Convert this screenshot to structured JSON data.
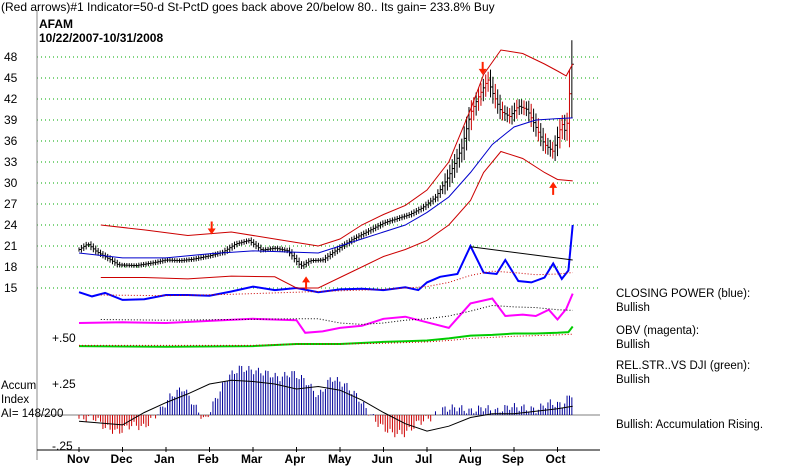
{
  "header": {
    "title": "(Red arrows)#1 Indicator=50-d St-PctD goes back above 20/below 80.. Its gain= 233.8% Buy",
    "ticker": "AFAM",
    "date_range": "10/22/2007-10/31/2008"
  },
  "side_labels": {
    "closing_power": {
      "title": "CLOSING POWER (blue):",
      "value": "Bullish"
    },
    "obv": {
      "title": "OBV (magenta):",
      "value": "Bullish"
    },
    "rel_str": {
      "title": "REL.STR..VS DJI (green):",
      "value": "Bullish"
    },
    "accum": {
      "text": "Bullish: Accumulation Rising."
    }
  },
  "accum_panel": {
    "title_line1": "Accum",
    "title_line2": "Index",
    "ai_text": "AI= 148/200"
  },
  "colors": {
    "price": "#000000",
    "band": "#cc0000",
    "ma": "#0000cc",
    "closing_power": "#0000ff",
    "obv": "#ff00ff",
    "rel_str": "#00cc00",
    "accum_pos": "#000099",
    "accum_neg": "#cc0000",
    "arrow": "#ff2200",
    "grid": "#00aa00"
  },
  "chart_data": {
    "type": "line",
    "x_tick_labels": [
      "Nov",
      "Dec",
      "Jan",
      "Feb",
      "Mar",
      "Apr",
      "May",
      "Jun",
      "Jul",
      "Aug",
      "Sep",
      "Oct"
    ],
    "price_y_ticks": [
      48,
      45,
      42,
      39,
      36,
      33,
      30,
      27,
      24,
      21,
      18,
      15
    ],
    "price_ylim": [
      13.5,
      49.5
    ],
    "accum_y_ticks": [
      {
        "value": 0.25,
        "label": "+.25"
      },
      {
        "value": -0.25,
        "label": "-.25"
      }
    ],
    "rel_str_level_label": "+.50",
    "series": [
      {
        "key": "price",
        "points": [
          [
            0,
            20.5
          ],
          [
            0.2,
            21.3
          ],
          [
            0.4,
            20.2
          ],
          [
            0.7,
            19.1
          ],
          [
            0.9,
            18.3
          ],
          [
            1.3,
            18.2
          ],
          [
            1.7,
            18.6
          ],
          [
            2.0,
            19.0
          ],
          [
            2.3,
            18.9
          ],
          [
            2.6,
            19.1
          ],
          [
            3.0,
            19.6
          ],
          [
            3.3,
            20.1
          ],
          [
            3.6,
            21.3
          ],
          [
            3.9,
            21.8
          ],
          [
            4.2,
            20.4
          ],
          [
            4.5,
            20.7
          ],
          [
            4.8,
            20.3
          ],
          [
            5.1,
            18.1
          ],
          [
            5.3,
            18.9
          ],
          [
            5.6,
            19.0
          ],
          [
            6.0,
            20.8
          ],
          [
            6.3,
            22.0
          ],
          [
            6.7,
            23.3
          ],
          [
            7.0,
            24.3
          ],
          [
            7.3,
            24.9
          ],
          [
            7.6,
            25.5
          ],
          [
            7.9,
            26.5
          ],
          [
            8.2,
            28.0
          ],
          [
            8.5,
            31.0
          ],
          [
            8.8,
            35.0
          ],
          [
            9.0,
            40.0
          ],
          [
            9.2,
            42.5
          ],
          [
            9.4,
            44.8
          ],
          [
            9.5,
            43.0
          ],
          [
            9.7,
            40.2
          ],
          [
            9.9,
            39.5
          ],
          [
            10.1,
            41.0
          ],
          [
            10.3,
            40.5
          ],
          [
            10.5,
            38.0
          ],
          [
            10.7,
            35.5
          ],
          [
            10.9,
            34.5
          ],
          [
            11.1,
            38.5
          ],
          [
            11.2,
            37.0
          ],
          [
            11.35,
            48.5
          ]
        ]
      },
      {
        "key": "ma",
        "points": [
          [
            0,
            20.0
          ],
          [
            1,
            19.3
          ],
          [
            2,
            19.3
          ],
          [
            3,
            19.9
          ],
          [
            4,
            20.3
          ],
          [
            5,
            20.1
          ],
          [
            5.5,
            20.0
          ],
          [
            6,
            21.0
          ],
          [
            7,
            23.0
          ],
          [
            7.5,
            24.0
          ],
          [
            8,
            25.8
          ],
          [
            8.5,
            28.0
          ],
          [
            9,
            31.5
          ],
          [
            9.5,
            35.5
          ],
          [
            10,
            38.0
          ],
          [
            10.5,
            39.0
          ],
          [
            11,
            39.2
          ],
          [
            11.35,
            39.3
          ]
        ]
      },
      {
        "key": "band_upper",
        "points": [
          [
            0.5,
            24.0
          ],
          [
            1.5,
            23.3
          ],
          [
            2.5,
            22.5
          ],
          [
            3.5,
            23.0
          ],
          [
            4.5,
            22.0
          ],
          [
            5,
            21.5
          ],
          [
            5.5,
            21.0
          ],
          [
            6,
            22.0
          ],
          [
            6.5,
            24.0
          ],
          [
            7,
            25.5
          ],
          [
            7.5,
            26.8
          ],
          [
            8,
            29.0
          ],
          [
            8.5,
            33.0
          ],
          [
            9,
            40.5
          ],
          [
            9.3,
            45.5
          ],
          [
            9.7,
            49.0
          ],
          [
            10.2,
            48.5
          ],
          [
            10.7,
            47.0
          ],
          [
            11.0,
            46.0
          ],
          [
            11.2,
            45.3
          ],
          [
            11.35,
            47.0
          ]
        ]
      },
      {
        "key": "band_lower",
        "points": [
          [
            0.5,
            16.5
          ],
          [
            1.5,
            16.5
          ],
          [
            2.5,
            16.3
          ],
          [
            3.5,
            16.7
          ],
          [
            4.5,
            16.6
          ],
          [
            5,
            15.0
          ],
          [
            5.5,
            15.0
          ],
          [
            6,
            16.5
          ],
          [
            6.5,
            18.0
          ],
          [
            7,
            19.5
          ],
          [
            7.5,
            20.5
          ],
          [
            8,
            21.8
          ],
          [
            8.5,
            24.0
          ],
          [
            9,
            27.5
          ],
          [
            9.3,
            31.5
          ],
          [
            9.7,
            34.5
          ],
          [
            10.2,
            33.5
          ],
          [
            10.7,
            31.5
          ],
          [
            11.0,
            30.5
          ],
          [
            11.35,
            30.3
          ]
        ]
      },
      {
        "key": "trendline",
        "points": [
          [
            9.0,
            20.9
          ],
          [
            11.35,
            19.0
          ]
        ]
      },
      {
        "key": "closing_power",
        "points": [
          [
            0,
            14.4
          ],
          [
            0.3,
            13.8
          ],
          [
            0.6,
            14.3
          ],
          [
            1,
            13.3
          ],
          [
            1.5,
            13.4
          ],
          [
            2,
            14.0
          ],
          [
            2.5,
            14.0
          ],
          [
            3,
            13.9
          ],
          [
            3.5,
            14.5
          ],
          [
            4,
            15.2
          ],
          [
            4.5,
            14.7
          ],
          [
            5,
            15.0
          ],
          [
            5.5,
            14.4
          ],
          [
            6,
            14.8
          ],
          [
            6.5,
            14.9
          ],
          [
            7,
            14.7
          ],
          [
            7.5,
            15.1
          ],
          [
            7.8,
            14.7
          ],
          [
            8,
            15.8
          ],
          [
            8.3,
            16.6
          ],
          [
            8.7,
            17.0
          ],
          [
            9,
            21.0
          ],
          [
            9.3,
            17.2
          ],
          [
            9.6,
            17.0
          ],
          [
            9.8,
            19.0
          ],
          [
            10.1,
            16.0
          ],
          [
            10.4,
            15.8
          ],
          [
            10.7,
            16.5
          ],
          [
            10.9,
            18.5
          ],
          [
            11.1,
            16.3
          ],
          [
            11.25,
            17.5
          ],
          [
            11.35,
            24.0
          ]
        ]
      },
      {
        "key": "obv",
        "points": [
          [
            0,
            10.0
          ],
          [
            1,
            10.1
          ],
          [
            2,
            10.0
          ],
          [
            3,
            10.3
          ],
          [
            4,
            10.6
          ],
          [
            5,
            10.4
          ],
          [
            5.2,
            8.6
          ],
          [
            5.6,
            8.8
          ],
          [
            6,
            9.3
          ],
          [
            6.5,
            9.6
          ],
          [
            7,
            10.6
          ],
          [
            7.5,
            10.9
          ],
          [
            8,
            10.1
          ],
          [
            8.5,
            9.3
          ],
          [
            9.0,
            12.8
          ],
          [
            9.5,
            13.5
          ],
          [
            9.8,
            11.0
          ],
          [
            10.2,
            11.2
          ],
          [
            10.5,
            11.0
          ],
          [
            10.8,
            11.9
          ],
          [
            11.0,
            10.5
          ],
          [
            11.2,
            12.0
          ],
          [
            11.35,
            14.2
          ]
        ]
      },
      {
        "key": "obv_ma",
        "points": [
          [
            0.5,
            10.5
          ],
          [
            2,
            10.4
          ],
          [
            3.5,
            10.5
          ],
          [
            5,
            10.6
          ],
          [
            5.5,
            10.6
          ],
          [
            6,
            10.0
          ],
          [
            6.5,
            9.8
          ],
          [
            7,
            10.0
          ],
          [
            7.5,
            10.4
          ],
          [
            8,
            10.6
          ],
          [
            8.5,
            11.0
          ],
          [
            9,
            11.7
          ],
          [
            9.5,
            12.5
          ],
          [
            10,
            12.3
          ],
          [
            10.5,
            12.2
          ],
          [
            11,
            11.9
          ],
          [
            11.35,
            11.8
          ]
        ]
      },
      {
        "key": "cp_ma",
        "points": [
          [
            0.5,
            14.0
          ],
          [
            2,
            13.9
          ],
          [
            3.5,
            14.1
          ],
          [
            5,
            14.4
          ],
          [
            6,
            14.6
          ],
          [
            7,
            14.8
          ],
          [
            8,
            15.2
          ],
          [
            8.5,
            15.8
          ],
          [
            9,
            16.8
          ],
          [
            9.5,
            17.4
          ],
          [
            10,
            17.2
          ],
          [
            10.5,
            16.9
          ],
          [
            11,
            17.0
          ],
          [
            11.35,
            17.2
          ]
        ]
      },
      {
        "key": "rel_str",
        "points": [
          [
            0,
            6.7
          ],
          [
            2,
            6.6
          ],
          [
            4,
            6.7
          ],
          [
            5,
            7.0
          ],
          [
            6,
            7.0
          ],
          [
            7,
            7.3
          ],
          [
            7.5,
            7.4
          ],
          [
            8,
            7.5
          ],
          [
            8.5,
            7.8
          ],
          [
            9,
            8.2
          ],
          [
            9.5,
            8.3
          ],
          [
            10,
            8.5
          ],
          [
            10.5,
            8.5
          ],
          [
            11,
            8.6
          ],
          [
            11.25,
            8.7
          ],
          [
            11.35,
            9.5
          ]
        ]
      },
      {
        "key": "rel_str_ma",
        "points": [
          [
            0,
            6.8
          ],
          [
            2,
            6.8
          ],
          [
            4,
            6.8
          ],
          [
            5,
            7.0
          ],
          [
            6,
            7.0
          ],
          [
            7,
            7.1
          ],
          [
            8,
            7.3
          ],
          [
            8.5,
            7.5
          ],
          [
            9,
            7.8
          ],
          [
            10,
            8.1
          ],
          [
            11,
            8.3
          ],
          [
            11.35,
            8.4
          ]
        ]
      },
      {
        "key": "accum_ma",
        "points": [
          [
            0,
            -0.05
          ],
          [
            1,
            -0.08
          ],
          [
            1.5,
            0.02
          ],
          [
            2,
            0.1
          ],
          [
            2.5,
            0.17
          ],
          [
            3,
            0.25
          ],
          [
            3.5,
            0.28
          ],
          [
            4,
            0.27
          ],
          [
            4.5,
            0.25
          ],
          [
            5,
            0.21
          ],
          [
            5.5,
            0.23
          ],
          [
            6,
            0.2
          ],
          [
            6.5,
            0.12
          ],
          [
            7,
            0.02
          ],
          [
            7.5,
            -0.07
          ],
          [
            8,
            -0.13
          ],
          [
            8.5,
            -0.09
          ],
          [
            9,
            -0.02
          ],
          [
            9.5,
            0.01
          ],
          [
            10,
            0.01
          ],
          [
            10.5,
            0.03
          ],
          [
            11,
            0.05
          ],
          [
            11.35,
            0.07
          ]
        ]
      }
    ],
    "accum_index": {
      "profile": [
        [
          0,
          -0.03
        ],
        [
          0.35,
          -0.02
        ],
        [
          0.6,
          -0.1
        ],
        [
          0.9,
          -0.14
        ],
        [
          1.2,
          -0.08
        ],
        [
          1.5,
          -0.1
        ],
        [
          1.9,
          0.05
        ],
        [
          2.1,
          0.15
        ],
        [
          2.4,
          0.22
        ],
        [
          2.7,
          0.05
        ],
        [
          2.9,
          -0.05
        ],
        [
          3.1,
          0.1
        ],
        [
          3.4,
          0.3
        ],
        [
          3.7,
          0.38
        ],
        [
          4.0,
          0.36
        ],
        [
          4.3,
          0.34
        ],
        [
          4.6,
          0.3
        ],
        [
          4.9,
          0.34
        ],
        [
          5.2,
          0.28
        ],
        [
          5.5,
          0.15
        ],
        [
          5.8,
          0.3
        ],
        [
          6.1,
          0.25
        ],
        [
          6.4,
          0.15
        ],
        [
          6.6,
          0.05
        ],
        [
          6.9,
          -0.08
        ],
        [
          7.2,
          -0.15
        ],
        [
          7.5,
          -0.15
        ],
        [
          7.8,
          -0.06
        ],
        [
          8.1,
          -0.02
        ],
        [
          8.4,
          0.05
        ],
        [
          8.7,
          0.06
        ],
        [
          9.0,
          0.03
        ],
        [
          9.3,
          0.06
        ],
        [
          9.6,
          0.03
        ],
        [
          9.9,
          0.07
        ],
        [
          10.2,
          0.06
        ],
        [
          10.5,
          0.04
        ],
        [
          10.8,
          0.1
        ],
        [
          11.1,
          0.08
        ],
        [
          11.35,
          0.18
        ]
      ]
    },
    "arrows": [
      {
        "direction": "down",
        "x": 3.05,
        "y": 23.5
      },
      {
        "direction": "down",
        "x": 9.28,
        "y": 46.3
      },
      {
        "direction": "up",
        "x": 10.9,
        "y": 29.3
      },
      {
        "direction": "up",
        "x": 5.22,
        "y": 15.8
      }
    ]
  }
}
